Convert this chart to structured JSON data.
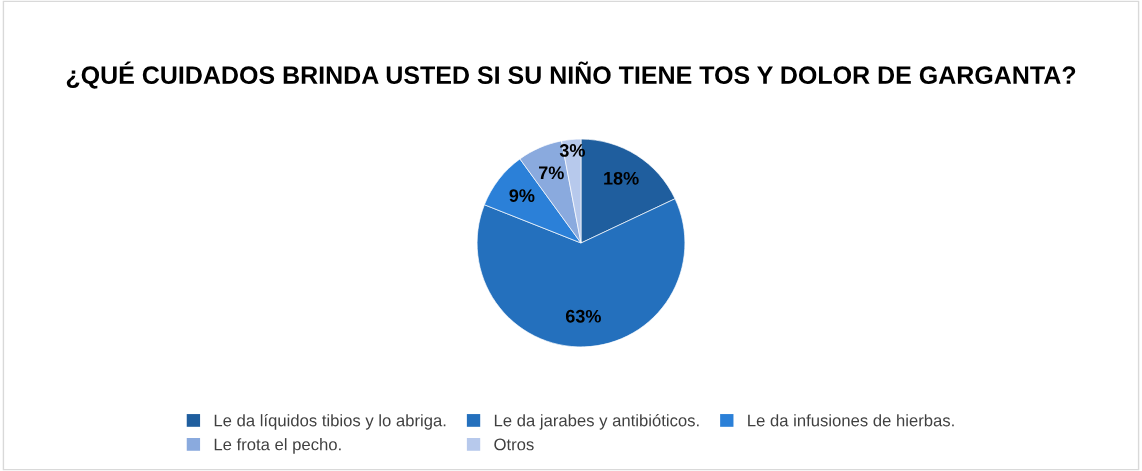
{
  "chart_data": {
    "type": "pie",
    "title": "¿QUÉ CUIDADOS BRINDA USTED SI SU NIÑO TIENE TOS Y DOLOR DE GARGANTA?",
    "categories": [
      "Le da líquidos tibios y lo abriga.",
      "Le da jarabes y antibióticos.",
      "Le da infusiones de hierbas.",
      "Le frota el pecho.",
      "Otros"
    ],
    "values": [
      18,
      63,
      9,
      7,
      3
    ],
    "colors": [
      "#1f5e9e",
      "#2470bd",
      "#2b80d8",
      "#8aaade",
      "#b7c9ec"
    ],
    "value_labels": [
      "18%",
      "63%",
      "9%",
      "7%",
      "3%"
    ],
    "legend": "bottom"
  }
}
